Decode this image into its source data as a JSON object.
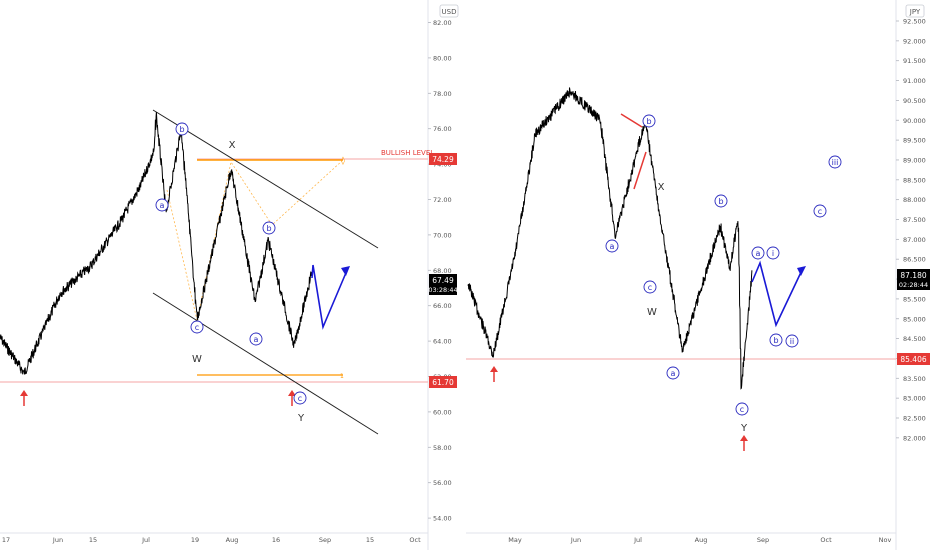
{
  "colors": {
    "price": "#000000",
    "channel": "#222222",
    "wave_label": "#2b2bbf",
    "projection": "#1a1ad6",
    "support": "#f6a6a6",
    "bullish": "#ff9800",
    "bullish_text": "#e53935",
    "price_tag_bg": "#000000",
    "level_tag_bg": "#e53935",
    "arrow": "#e53935"
  },
  "left": {
    "currency": "USD",
    "price_tag": "67.49",
    "timer": "03:28:44",
    "bullish_label": "BULLISH LEVEL",
    "bullish_value": "74.29",
    "support_value": "61.70",
    "y_ticks": [
      "82.00",
      "80.00",
      "78.00",
      "76.00",
      "74.00",
      "72.00",
      "70.00",
      "68.00",
      "66.00",
      "64.00",
      "62.00",
      "60.00",
      "58.00",
      "56.00",
      "54.00"
    ],
    "x_ticks": [
      "17",
      "Jun",
      "15",
      "Jul",
      "19",
      "Aug",
      "16",
      "Sep",
      "15",
      "Oct"
    ],
    "wave_labels": [
      "a",
      "b",
      "c",
      "a",
      "b",
      "c"
    ],
    "big_labels": [
      "X",
      "W",
      "Y"
    ]
  },
  "right": {
    "currency": "JPY",
    "price_tag": "87.180",
    "timer": "02:28:44",
    "support_value": "85.406",
    "y_ticks": [
      "92.500",
      "92.000",
      "91.500",
      "91.000",
      "90.500",
      "90.000",
      "89.500",
      "89.000",
      "88.500",
      "88.000",
      "87.500",
      "87.000",
      "86.500",
      "86.000",
      "85.500",
      "85.000",
      "84.500",
      "84.000",
      "83.500",
      "83.000",
      "82.500",
      "82.000"
    ],
    "x_ticks": [
      "May",
      "Jun",
      "Jul",
      "Aug",
      "Sep",
      "Oct",
      "Nov"
    ],
    "wave_labels": [
      "a",
      "b",
      "c",
      "b",
      "a",
      "c",
      "a",
      "b",
      "c",
      "i",
      "ii",
      "iii"
    ],
    "big_labels": [
      "X",
      "W",
      "Y"
    ]
  },
  "chart_data": [
    {
      "type": "line",
      "ylim": [
        53,
        83
      ],
      "x_ticks": [
        "17",
        "Jun",
        "15",
        "Jul",
        "19",
        "Aug",
        "16",
        "Sep",
        "15",
        "Oct"
      ],
      "series": [
        {
          "values": [
            64.0,
            62.0,
            66.5,
            68.0,
            70.5,
            72.5,
            74.5,
            76.6,
            71.0,
            75.8,
            65.0,
            73.5,
            66.0,
            69.5,
            63.5,
            67.8
          ]
        }
      ],
      "annotations": [
        "X",
        "W",
        "Y",
        "a",
        "b",
        "c",
        "a",
        "b",
        "c",
        "BULLISH LEVEL"
      ],
      "levels": {
        "bullish": 74.29,
        "support": 61.7,
        "last": 67.49
      }
    },
    {
      "type": "line",
      "ylim": [
        81.7,
        92.8
      ],
      "x_ticks": [
        "May",
        "Jun",
        "Jul",
        "Aug",
        "Sep",
        "Oct",
        "Nov"
      ],
      "series": [
        {
          "values": [
            86.9,
            85.4,
            87.5,
            90.0,
            90.9,
            90.3,
            87.9,
            90.3,
            88.0,
            86.4,
            85.5,
            88.1,
            87.2,
            88.3,
            84.7,
            87.18
          ]
        }
      ],
      "annotations": [
        "X",
        "W",
        "Y",
        "a",
        "b",
        "c",
        "a",
        "b",
        "c",
        "i",
        "ii",
        "iii"
      ],
      "levels": {
        "support": 85.406,
        "last": 87.18
      }
    }
  ]
}
